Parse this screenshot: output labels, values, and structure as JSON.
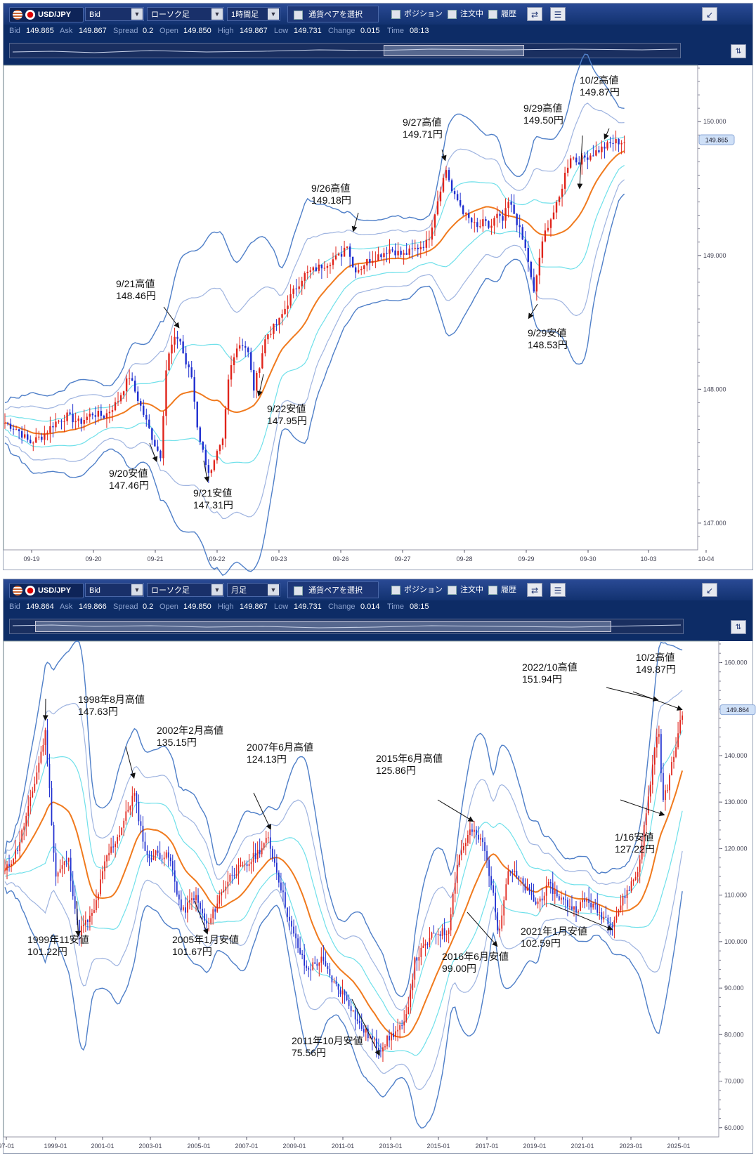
{
  "panels": [
    {
      "symbol": "USD/JPY",
      "price_side": "Bid",
      "chart_kind": "ローソク足",
      "timeframe": "1時間足",
      "pair_select_label": "通貨ペアを選択",
      "checks": [
        "ポジション",
        "注文中",
        "履歴"
      ],
      "info": {
        "bid_label": "Bid",
        "bid": "149.865",
        "ask_label": "Ask",
        "ask": "149.867",
        "spread_label": "Spread",
        "spread": "0.2",
        "open_label": "Open",
        "open": "149.850",
        "high_label": "High",
        "high": "149.867",
        "low_label": "Low",
        "low": "149.731",
        "change_label": "Change",
        "change": "0.015",
        "time_label": "Time",
        "time": "08:13"
      },
      "current_price_tag": "149.865"
    },
    {
      "symbol": "USD/JPY",
      "price_side": "Bid",
      "chart_kind": "ローソク足",
      "timeframe": "月足",
      "pair_select_label": "通貨ペアを選択",
      "checks": [
        "ポジション",
        "注文中",
        "履歴"
      ],
      "info": {
        "bid_label": "Bid",
        "bid": "149.864",
        "ask_label": "Ask",
        "ask": "149.866",
        "spread_label": "Spread",
        "spread": "0.2",
        "open_label": "Open",
        "open": "149.850",
        "high_label": "High",
        "high": "149.867",
        "low_label": "Low",
        "low": "149.731",
        "change_label": "Change",
        "change": "0.014",
        "time_label": "Time",
        "time": "08:15"
      },
      "current_price_tag": "149.864"
    }
  ],
  "colors": {
    "up_candle": "#e0241b",
    "down_candle": "#1f2fd0",
    "sma": "#f07a1e",
    "band1": "#6fe0ea",
    "band2": "#9fb4e0",
    "band3": "#4f7fc8",
    "toolbar": "#1a3a80"
  },
  "chart_data": [
    {
      "type": "candlestick",
      "title": "",
      "timeframe": "1時間足",
      "x_ticks": [
        "09-19",
        "09-20",
        "09-21",
        "09-22",
        "09-23",
        "09-26",
        "09-27",
        "09-28",
        "09-29",
        "09-30",
        "10-03",
        "10-04"
      ],
      "y_ticks": [
        "150.000",
        "149.000",
        "148.000",
        "147.000"
      ],
      "ylim": [
        146.8,
        150.4
      ],
      "close_path": [
        [
          0,
          147.75
        ],
        [
          1,
          147.7
        ],
        [
          2,
          147.6
        ],
        [
          3,
          147.65
        ],
        [
          4,
          147.75
        ],
        [
          5,
          147.8
        ],
        [
          6,
          147.75
        ],
        [
          7,
          147.82
        ],
        [
          8,
          147.8
        ],
        [
          9,
          147.9
        ],
        [
          10,
          148.1
        ],
        [
          11,
          147.85
        ],
        [
          12,
          147.6
        ],
        [
          12.5,
          147.5
        ],
        [
          13,
          148.2
        ],
        [
          13.5,
          148.35
        ],
        [
          14,
          148.4
        ],
        [
          14.5,
          148.2
        ],
        [
          15,
          148.1
        ],
        [
          15.5,
          147.7
        ],
        [
          16,
          147.5
        ],
        [
          16.5,
          147.35
        ],
        [
          17,
          147.5
        ],
        [
          17.5,
          147.6
        ],
        [
          18,
          148.1
        ],
        [
          18.5,
          148.3
        ],
        [
          19,
          148.35
        ],
        [
          19.5,
          148.3
        ],
        [
          20,
          148.0
        ],
        [
          20.5,
          148.2
        ],
        [
          21,
          148.4
        ],
        [
          21.5,
          148.45
        ],
        [
          22,
          148.5
        ],
        [
          23,
          148.7
        ],
        [
          24,
          148.85
        ],
        [
          25,
          148.9
        ],
        [
          26,
          148.95
        ],
        [
          27,
          149.0
        ],
        [
          27.5,
          149.1
        ],
        [
          28,
          148.9
        ],
        [
          28.5,
          148.9
        ],
        [
          29,
          148.95
        ],
        [
          30,
          149.0
        ],
        [
          31,
          149.05
        ],
        [
          32,
          149.0
        ],
        [
          33,
          149.05
        ],
        [
          34,
          149.1
        ],
        [
          35,
          149.5
        ],
        [
          35.5,
          149.65
        ],
        [
          36,
          149.45
        ],
        [
          36.5,
          149.4
        ],
        [
          37,
          149.3
        ],
        [
          37.5,
          149.25
        ],
        [
          38,
          149.2
        ],
        [
          38.5,
          149.25
        ],
        [
          39,
          149.2
        ],
        [
          39.5,
          149.3
        ],
        [
          40,
          149.25
        ],
        [
          40.5,
          149.4
        ],
        [
          41,
          149.3
        ],
        [
          42,
          149.0
        ],
        [
          42.5,
          148.7
        ],
        [
          43,
          149.0
        ],
        [
          43.5,
          149.2
        ],
        [
          44,
          149.3
        ],
        [
          44.5,
          149.4
        ],
        [
          45,
          149.6
        ],
        [
          45.5,
          149.75
        ],
        [
          46,
          149.7
        ],
        [
          47,
          149.75
        ],
        [
          48,
          149.8
        ],
        [
          49,
          149.85
        ]
      ],
      "annotations": [
        {
          "label": "9/20安値",
          "value": "147.46円"
        },
        {
          "label": "9/21高値",
          "value": "148.46円"
        },
        {
          "label": "9/21安値",
          "value": "147.31円"
        },
        {
          "label": "9/22安値",
          "value": "147.95円"
        },
        {
          "label": "9/26高値",
          "value": "149.18円"
        },
        {
          "label": "9/27高値",
          "value": "149.71円"
        },
        {
          "label": "9/29高値",
          "value": "149.50円"
        },
        {
          "label": "10/2高値",
          "value": "149.87円"
        },
        {
          "label": "9/29安値",
          "value": "148.53円"
        }
      ],
      "annotation_points": [
        {
          "x": 12.2,
          "y": 147.46
        },
        {
          "x": 14.0,
          "y": 148.46
        },
        {
          "x": 16.3,
          "y": 147.31
        },
        {
          "x": 20.4,
          "y": 147.95
        },
        {
          "x": 28.0,
          "y": 149.18
        },
        {
          "x": 35.4,
          "y": 149.71
        },
        {
          "x": 46.2,
          "y": 149.5
        },
        {
          "x": 48.2,
          "y": 149.87
        },
        {
          "x": 42.1,
          "y": 148.53
        }
      ],
      "series": [
        {
          "name": "",
          "values": []
        }
      ],
      "bands": "Bollinger Bands (±1σ, ±2σ, ±3σ) with moving average",
      "grid": false,
      "legend": "none"
    },
    {
      "type": "candlestick",
      "title": "",
      "timeframe": "月足",
      "x_ticks": [
        "97-01",
        "1999-01",
        "2001-01",
        "2003-01",
        "2005-01",
        "2007-01",
        "2009-01",
        "2011-01",
        "2013-01",
        "2015-01",
        "2017-01",
        "2019-01",
        "2021-01",
        "2023-01",
        "2025-01"
      ],
      "y_ticks": [
        "160.000",
        "150.000",
        "140.000",
        "130.000",
        "120.000",
        "110.000",
        "100.000",
        "90.000",
        "80.000",
        "70.000",
        "60.000"
      ],
      "ylim": [
        58,
        164
      ],
      "close_path": [
        [
          1997.0,
          115
        ],
        [
          1997.5,
          120
        ],
        [
          1998.0,
          130
        ],
        [
          1998.6,
          145
        ],
        [
          1999.0,
          114
        ],
        [
          1999.5,
          118
        ],
        [
          1999.9,
          102
        ],
        [
          2000.5,
          106
        ],
        [
          2001.0,
          118
        ],
        [
          2001.5,
          123
        ],
        [
          2002.1,
          132
        ],
        [
          2002.6,
          118
        ],
        [
          2003.0,
          119
        ],
        [
          2003.5,
          118
        ],
        [
          2004.0,
          106
        ],
        [
          2004.5,
          110
        ],
        [
          2005.0,
          103
        ],
        [
          2005.5,
          110
        ],
        [
          2006.0,
          115
        ],
        [
          2006.5,
          116
        ],
        [
          2007.4,
          122
        ],
        [
          2007.8,
          114
        ],
        [
          2008.3,
          103
        ],
        [
          2008.9,
          94
        ],
        [
          2009.5,
          96
        ],
        [
          2010.0,
          91
        ],
        [
          2010.5,
          88
        ],
        [
          2011.0,
          82
        ],
        [
          2011.5,
          79
        ],
        [
          2011.8,
          77
        ],
        [
          2012.3,
          80
        ],
        [
          2012.8,
          82
        ],
        [
          2013.2,
          96
        ],
        [
          2013.6,
          99
        ],
        [
          2014.0,
          102
        ],
        [
          2014.5,
          102
        ],
        [
          2014.9,
          118
        ],
        [
          2015.4,
          124
        ],
        [
          2015.9,
          121
        ],
        [
          2016.2,
          113
        ],
        [
          2016.5,
          102
        ],
        [
          2016.9,
          116
        ],
        [
          2017.5,
          112
        ],
        [
          2018.0,
          108
        ],
        [
          2018.5,
          112
        ],
        [
          2019.0,
          109
        ],
        [
          2019.5,
          107
        ],
        [
          2020.0,
          109
        ],
        [
          2020.5,
          106
        ],
        [
          2021.0,
          104
        ],
        [
          2021.5,
          110
        ],
        [
          2022.0,
          115
        ],
        [
          2022.4,
          130
        ],
        [
          2022.8,
          147
        ],
        [
          2023.0,
          130
        ],
        [
          2023.2,
          134
        ],
        [
          2023.5,
          142
        ],
        [
          2023.75,
          149.6
        ]
      ],
      "annotations": [
        {
          "label": "1998年8月高値",
          "value": "147.63円"
        },
        {
          "label": "1999年11安値",
          "value": "101.22円"
        },
        {
          "label": "2002年2月高値",
          "value": "135.15円"
        },
        {
          "label": "2005年1月安値",
          "value": "101.67円"
        },
        {
          "label": "2007年6月高値",
          "value": "124.13円"
        },
        {
          "label": "2011年10月安値",
          "value": "75.56円"
        },
        {
          "label": "2015年6月高値",
          "value": "125.86円"
        },
        {
          "label": "2016年6月安値",
          "value": "99.00円"
        },
        {
          "label": "2021年1月安値",
          "value": "102.59円"
        },
        {
          "label": "2022/10高値",
          "value": "151.94円"
        },
        {
          "label": "10/2高値",
          "value": "149.87円"
        },
        {
          "label": "1/16安値",
          "value": "127.22円"
        }
      ],
      "annotation_points": [
        {
          "x": 1998.6,
          "y": 147.63
        },
        {
          "x": 1999.9,
          "y": 101.22
        },
        {
          "x": 2002.1,
          "y": 135.15
        },
        {
          "x": 2005.0,
          "y": 101.67
        },
        {
          "x": 2007.5,
          "y": 124.13
        },
        {
          "x": 2011.8,
          "y": 75.56
        },
        {
          "x": 2015.5,
          "y": 125.86
        },
        {
          "x": 2016.45,
          "y": 99.0
        },
        {
          "x": 2021.0,
          "y": 102.59
        },
        {
          "x": 2022.8,
          "y": 151.94
        },
        {
          "x": 2023.75,
          "y": 149.87
        },
        {
          "x": 2023.05,
          "y": 127.22
        }
      ],
      "series": [
        {
          "name": "",
          "values": []
        }
      ],
      "bands": "Bollinger Bands (±1σ, ±2σ, ±3σ) with moving average",
      "grid": false,
      "legend": "none"
    }
  ]
}
